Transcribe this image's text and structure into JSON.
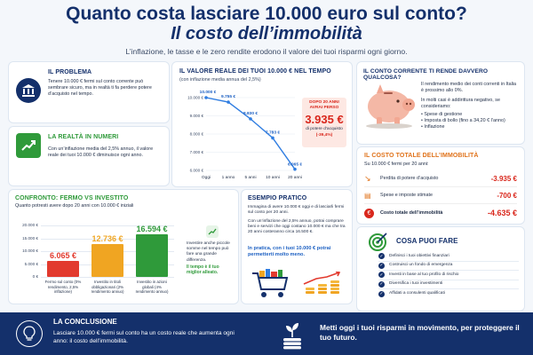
{
  "header": {
    "title": "Quanto costa lasciare 10.000 euro sul conto?",
    "subtitle": "Il costo dell’immobilità",
    "intro": "L’inflazione, le tasse e le zero rendite erodono il valore dei tuoi risparmi ogni giorno."
  },
  "problem": {
    "title": "IL PROBLEMA",
    "text": "Tenere 10.000 € fermi sul conto corrente può sembrare sicuro, ma in realtà ti fa perdere potere d’acquisto nel tempo."
  },
  "reality": {
    "title": "LA REALTÀ IN NUMERI",
    "text": "Con un’inflazione media del 2,5% annuo, il valore reale dei tuoi 10.000 € diminuisce ogni anno."
  },
  "value_chart": {
    "title": "IL VALORE REALE DEI TUOI 10.000 € NEL TEMPO",
    "subtitle": "(con inflazione media annua del 2,5%)",
    "callout_title": "DOPO 20 ANNI AVRAI PERSO",
    "callout_value": "3.935 €",
    "callout_text": "di potere d’acquisto",
    "callout_pct": "(-39,4%)"
  },
  "chart_data": [
    {
      "type": "line",
      "x": [
        "Oggi",
        "1 anno",
        "5 anni",
        "10 anni",
        "20 anni"
      ],
      "values": [
        10000,
        9755,
        8830,
        7783,
        6065
      ],
      "data_labels": [
        "10.000 €",
        "9.755 €",
        "8.830 €",
        "7.783 €",
        "6.065 €"
      ],
      "y_ticks": [
        "10.000 €",
        "9.000 €",
        "8.000 €",
        "7.000 €",
        "6.000 €"
      ],
      "ylim": [
        6000,
        10000
      ],
      "grid": true
    },
    {
      "type": "bar",
      "categories": [
        "Fermo sul conto (0% rendimento, 2,5% inflazione)",
        "Investito in titoli obbligazionari (2% rendimento annuo)",
        "Investito in azioni globali (4% rendimento annuo)"
      ],
      "values": [
        6065,
        12736,
        16594
      ],
      "data_labels": [
        "6.065 €",
        "12.736 €",
        "16.594 €"
      ],
      "y_ticks": [
        "20.000 €",
        "15.000 €",
        "10.000 €",
        "5.000 €",
        "0 €"
      ],
      "ylim": [
        0,
        20000
      ],
      "colors": [
        "#e23a2e",
        "#f0a522",
        "#2f9a3a"
      ]
    }
  ],
  "current_account": {
    "title": "IL CONTO CORRENTE TI RENDE DAVVERO QUALCOSA?",
    "text1": "Il rendimento medio dei conti correnti in Italia è prossimo allo 0%.",
    "text2": "In molti casi è addirittura negativo, se consideriamo:",
    "items": [
      "Spese di gestione",
      "Imposta di bollo (fino a 34,20 € l’anno)",
      "Inflazione"
    ]
  },
  "total_cost": {
    "title": "IL COSTO TOTALE DELL’IMMOBILITÀ",
    "subtitle": "Su 10.000 € fermi per 20 anni:",
    "rows": [
      {
        "label": "Perdita di potere d’acquisto",
        "value": "-3.935 €"
      },
      {
        "label": "Spese e imposte stimate",
        "value": "-700 €"
      },
      {
        "label": "Costo totale dell’immobilità",
        "value": "-4.635 €"
      }
    ]
  },
  "comparison": {
    "title": "CONFRONTO: FERMO VS INVESTITO",
    "subtitle": "Quanto potresti avere dopo 20 anni con 10.000 € iniziali",
    "side_text": "Investire anche piccole somme nel tempo può fare una grande differenza.",
    "side_highlight": "Il tempo è il tuo miglior alleato."
  },
  "example": {
    "title": "ESEMPIO PRATICO",
    "text1": "Immagina di avere 10.000 € oggi e di lasciarli fermi sul conto per 20 anni.",
    "text2": "Con un’inflazione del 2,5% annuo, potrai comprare beni e servizi che oggi costano 10.000 € ma che tra 20 anni costeranno circa 16.500 €.",
    "highlight": "In pratica, con i tuoi 10.000 € potrai permetterti molto meno."
  },
  "actions": {
    "title": "COSA PUOI FARE",
    "items": [
      "Definisci i tuoi obiettivi finanziari",
      "Costruisci un fondo di emergenza",
      "Investi in base al tuo profilo di rischio",
      "Diversifica i tuoi investimenti",
      "Affidati a consulenti qualificati"
    ]
  },
  "conclusion": {
    "title": "LA CONCLUSIONE",
    "text": "Lasciare 10.000 € fermi sul conto ha un costo reale che aumenta ogni anno: il costo dell’immobilità.",
    "cta": "Metti oggi i tuoi risparmi in movimento, per proteggere il tuo futuro."
  },
  "colors": {
    "navy": "#14306b",
    "orange": "#e0721a",
    "red": "#d9271c",
    "green": "#2f9a3a",
    "blue": "#2f7de1"
  }
}
